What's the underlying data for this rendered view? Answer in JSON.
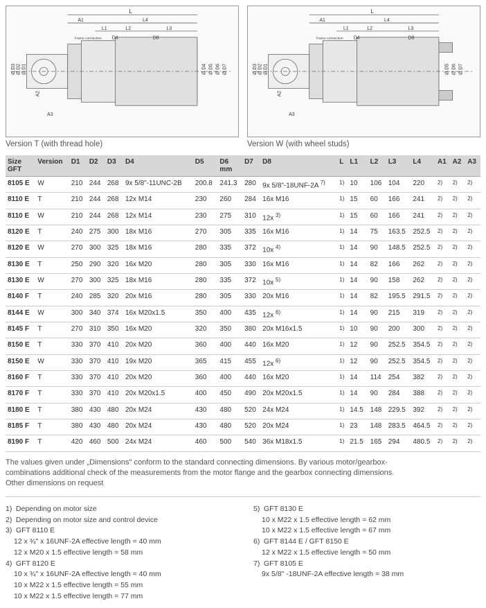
{
  "diagrams": {
    "left_caption": "Version T (with thread hole)",
    "right_caption": "Version W (with wheel studs)",
    "dim_labels": [
      "L",
      "A1",
      "L4",
      "L1",
      "L2",
      "L3",
      "D4",
      "D8",
      "Ø D3",
      "Ø D2",
      "Ø D1",
      "A2",
      "A3",
      "Ø D4",
      "Ø D5",
      "Ø D6",
      "Ø D7"
    ],
    "frame_label": "Frame connection",
    "line_color": "#555",
    "bg": "#fafafa"
  },
  "table": {
    "headers": [
      "Size GFT",
      "Version",
      "D1",
      "D2",
      "D3",
      "D4",
      "D5",
      "D6 mm",
      "D7",
      "D8",
      "L",
      "L1",
      "L2",
      "L3",
      "L4",
      "A1",
      "A2",
      "A3"
    ],
    "rows": [
      {
        "size": "8105 E",
        "ver": "W",
        "d1": "210",
        "d2": "244",
        "d3": "268",
        "d4": "9x 5/8\"-11UNC-2B",
        "d5": "200.8",
        "d6": "241.3",
        "d7": "280",
        "d8": "9x 5/8\"-18UNF-2A",
        "d8sup": "7)",
        "l": "1)",
        "l1": "10",
        "l2": "106",
        "l3": "104",
        "l4": "220",
        "a1": "2)",
        "a2": "2)",
        "a3": "2)"
      },
      {
        "size": "8110 E",
        "ver": "T",
        "d1": "210",
        "d2": "244",
        "d3": "268",
        "d4": "12x M14",
        "d5": "230",
        "d6": "260",
        "d7": "284",
        "d8": "16x M16",
        "d8sup": "",
        "l": "1)",
        "l1": "15",
        "l2": "60",
        "l3": "166",
        "l4": "241",
        "a1": "2)",
        "a2": "2)",
        "a3": "2)"
      },
      {
        "size": "8110 E",
        "ver": "W",
        "d1": "210",
        "d2": "244",
        "d3": "268",
        "d4": "12x M14",
        "d5": "230",
        "d6": "275",
        "d7": "310",
        "d8": "12x",
        "d8sup": "3)",
        "l": "1)",
        "l1": "15",
        "l2": "60",
        "l3": "166",
        "l4": "241",
        "a1": "2)",
        "a2": "2)",
        "a3": "2)"
      },
      {
        "size": "8120 E",
        "ver": "T",
        "d1": "240",
        "d2": "275",
        "d3": "300",
        "d4": "18x M16",
        "d5": "270",
        "d6": "305",
        "d7": "335",
        "d8": "16x M16",
        "d8sup": "",
        "l": "1)",
        "l1": "14",
        "l2": "75",
        "l3": "163.5",
        "l4": "252.5",
        "a1": "2)",
        "a2": "2)",
        "a3": "2)"
      },
      {
        "size": "8120 E",
        "ver": "W",
        "d1": "270",
        "d2": "300",
        "d3": "325",
        "d4": "18x M16",
        "d5": "280",
        "d6": "335",
        "d7": "372",
        "d8": "10x",
        "d8sup": "4)",
        "l": "1)",
        "l1": "14",
        "l2": "90",
        "l3": "148.5",
        "l4": "252.5",
        "a1": "2)",
        "a2": "2)",
        "a3": "2)"
      },
      {
        "size": "8130 E",
        "ver": "T",
        "d1": "250",
        "d2": "290",
        "d3": "320",
        "d4": "16x M20",
        "d5": "280",
        "d6": "305",
        "d7": "330",
        "d8": "16x M16",
        "d8sup": "",
        "l": "1)",
        "l1": "14",
        "l2": "82",
        "l3": "166",
        "l4": "262",
        "a1": "2)",
        "a2": "2)",
        "a3": "2)"
      },
      {
        "size": "8130 E",
        "ver": "W",
        "d1": "270",
        "d2": "300",
        "d3": "325",
        "d4": "18x M16",
        "d5": "280",
        "d6": "335",
        "d7": "372",
        "d8": "10x",
        "d8sup": "5)",
        "l": "1)",
        "l1": "14",
        "l2": "90",
        "l3": "158",
        "l4": "262",
        "a1": "2)",
        "a2": "2)",
        "a3": "2)"
      },
      {
        "size": "8140 F",
        "ver": "T",
        "d1": "240",
        "d2": "285",
        "d3": "320",
        "d4": "20x M16",
        "d5": "280",
        "d6": "305",
        "d7": "330",
        "d8": "20x M16",
        "d8sup": "",
        "l": "1)",
        "l1": "14",
        "l2": "82",
        "l3": "195.5",
        "l4": "291.5",
        "a1": "2)",
        "a2": "2)",
        "a3": "2)"
      },
      {
        "size": "8144 E",
        "ver": "W",
        "d1": "300",
        "d2": "340",
        "d3": "374",
        "d4": "16x M20x1.5",
        "d5": "350",
        "d6": "400",
        "d7": "435",
        "d8": "12x",
        "d8sup": "6)",
        "l": "1)",
        "l1": "14",
        "l2": "90",
        "l3": "215",
        "l4": "319",
        "a1": "2)",
        "a2": "2)",
        "a3": "2)"
      },
      {
        "size": "8145 F",
        "ver": "T",
        "d1": "270",
        "d2": "310",
        "d3": "350",
        "d4": "16x M20",
        "d5": "320",
        "d6": "350",
        "d7": "380",
        "d8": "20x M16x1.5",
        "d8sup": "",
        "l": "1)",
        "l1": "10",
        "l2": "90",
        "l3": "200",
        "l4": "300",
        "a1": "2)",
        "a2": "2)",
        "a3": "2)"
      },
      {
        "size": "8150 E",
        "ver": "T",
        "d1": "330",
        "d2": "370",
        "d3": "410",
        "d4": "20x M20",
        "d5": "360",
        "d6": "400",
        "d7": "440",
        "d8": "16x M20",
        "d8sup": "",
        "l": "1)",
        "l1": "12",
        "l2": "90",
        "l3": "252.5",
        "l4": "354.5",
        "a1": "2)",
        "a2": "2)",
        "a3": "2)"
      },
      {
        "size": "8150 E",
        "ver": "W",
        "d1": "330",
        "d2": "370",
        "d3": "410",
        "d4": "19x M20",
        "d5": "365",
        "d6": "415",
        "d7": "455",
        "d8": "12x",
        "d8sup": "6)",
        "l": "1)",
        "l1": "12",
        "l2": "90",
        "l3": "252.5",
        "l4": "354.5",
        "a1": "2)",
        "a2": "2)",
        "a3": "2)"
      },
      {
        "size": "8160 F",
        "ver": "T",
        "d1": "330",
        "d2": "370",
        "d3": "410",
        "d4": "20x M20",
        "d5": "360",
        "d6": "400",
        "d7": "440",
        "d8": "16x M20",
        "d8sup": "",
        "l": "1)",
        "l1": "14",
        "l2": "114",
        "l3": "254",
        "l4": "382",
        "a1": "2)",
        "a2": "2)",
        "a3": "2)"
      },
      {
        "size": "8170 F",
        "ver": "T",
        "d1": "330",
        "d2": "370",
        "d3": "410",
        "d4": "20x M20x1.5",
        "d5": "400",
        "d6": "450",
        "d7": "490",
        "d8": "20x M20x1.5",
        "d8sup": "",
        "l": "1)",
        "l1": "14",
        "l2": "90",
        "l3": "284",
        "l4": "388",
        "a1": "2)",
        "a2": "2)",
        "a3": "2)"
      },
      {
        "size": "8180 E",
        "ver": "T",
        "d1": "380",
        "d2": "430",
        "d3": "480",
        "d4": "20x M24",
        "d5": "430",
        "d6": "480",
        "d7": "520",
        "d8": "24x M24",
        "d8sup": "",
        "l": "1)",
        "l1": "14.5",
        "l2": "148",
        "l3": "229.5",
        "l4": "392",
        "a1": "2)",
        "a2": "2)",
        "a3": "2)"
      },
      {
        "size": "8185 F",
        "ver": "T",
        "d1": "380",
        "d2": "430",
        "d3": "480",
        "d4": "20x M24",
        "d5": "430",
        "d6": "480",
        "d7": "520",
        "d8": "20x M24",
        "d8sup": "",
        "l": "1)",
        "l1": "23",
        "l2": "148",
        "l3": "283.5",
        "l4": "464.5",
        "a1": "2)",
        "a2": "2)",
        "a3": "2)"
      },
      {
        "size": "8190 F",
        "ver": "T",
        "d1": "420",
        "d2": "460",
        "d3": "500",
        "d4": "24x M24",
        "d5": "460",
        "d6": "500",
        "d7": "540",
        "d8": "36x M18x1.5",
        "d8sup": "",
        "l": "1)",
        "l1": "21.5",
        "l2": "165",
        "l3": "294",
        "l4": "480.5",
        "a1": "2)",
        "a2": "2)",
        "a3": "2)"
      }
    ]
  },
  "note": {
    "line1": "The values given under „Dimensions\" conform to the standard connecting dimensions. By various motor/gearbox-",
    "line2": "combinations additional check of the measurements from the motor flange and the gearbox connecting dimensions.",
    "line3": "Other dimensions on request"
  },
  "footnotes": {
    "left": [
      {
        "n": "1)",
        "t": "Depending on motor size"
      },
      {
        "n": "2)",
        "t": "Depending on motor size and control device"
      },
      {
        "n": "3)",
        "t": "GFT 8110 E"
      },
      {
        "n": "",
        "t": "12 x ¾\" x 16UNF-2A effective length = 40 mm",
        "indent": true
      },
      {
        "n": "",
        "t": "12 x M20 x 1.5 effective length = 58 mm",
        "indent": true
      },
      {
        "n": "4)",
        "t": "GFT 8120 E"
      },
      {
        "n": "",
        "t": "10 x ¾\" x 16UNF-2A effective length = 40 mm",
        "indent": true
      },
      {
        "n": "",
        "t": "10 x M22 x 1.5 effective length = 55 mm",
        "indent": true
      },
      {
        "n": "",
        "t": "10 x M22 x 1.5 effective length = 77 mm",
        "indent": true
      }
    ],
    "right": [
      {
        "n": "5)",
        "t": "GFT 8130 E"
      },
      {
        "n": "",
        "t": "10 x M22 x 1.5 effective length = 62 mm",
        "indent": true
      },
      {
        "n": "",
        "t": "10 x M22 x 1.5 effective length = 67 mm",
        "indent": true
      },
      {
        "n": "6)",
        "t": "GFT 8144 E / GFT 8150 E"
      },
      {
        "n": "",
        "t": "12 x M22 x 1.5 effective length = 50 mm",
        "indent": true
      },
      {
        "n": "7)",
        "t": "GFT 8105 E"
      },
      {
        "n": "",
        "t": "9x 5/8\" -18UNF-2A effective length = 38 mm",
        "indent": true
      }
    ]
  }
}
